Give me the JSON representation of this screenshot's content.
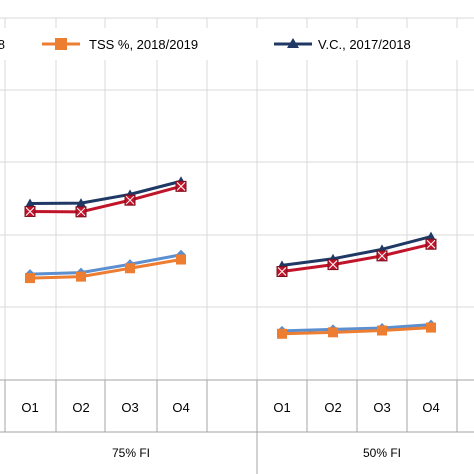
{
  "chart_data": {
    "type": "line",
    "groups": [
      {
        "label": "75% FI",
        "categories": [
          "O1",
          "O2",
          "O3",
          "O4"
        ]
      },
      {
        "label": "50% FI",
        "categories": [
          "O1",
          "O2",
          "O3",
          "O4"
        ]
      }
    ],
    "legend_position": "top",
    "legend_clipped_fragment": "8",
    "grid": true,
    "series": [
      {
        "name": "",
        "color": "#1f3864",
        "marker": "triangle",
        "values": [
          [
            68.5,
            68.6,
            71.0,
            74.6
          ],
          [
            51.5,
            53.3,
            55.9,
            59.4
          ]
        ]
      },
      {
        "name": "",
        "color": "#c0142a",
        "marker": "square-x",
        "values": [
          [
            66.3,
            66.2,
            69.4,
            73.2
          ],
          [
            49.8,
            51.7,
            54.1,
            57.3
          ]
        ]
      },
      {
        "name": "",
        "color": "#5b8fd0",
        "marker": "diamond",
        "values": [
          [
            49.1,
            49.5,
            51.8,
            54.4
          ],
          [
            33.5,
            33.9,
            34.3,
            35.2
          ]
        ]
      },
      {
        "name": "TSS %, 2018/2019",
        "color": "#ed7d31",
        "marker": "square",
        "values": [
          [
            48.0,
            48.4,
            50.7,
            53.1
          ],
          [
            32.7,
            33.1,
            33.6,
            34.4
          ]
        ]
      },
      {
        "name": "V.C.,  2017/2018",
        "color": "#1f3864",
        "marker": "triangle",
        "legend_only": true,
        "values": []
      }
    ]
  }
}
